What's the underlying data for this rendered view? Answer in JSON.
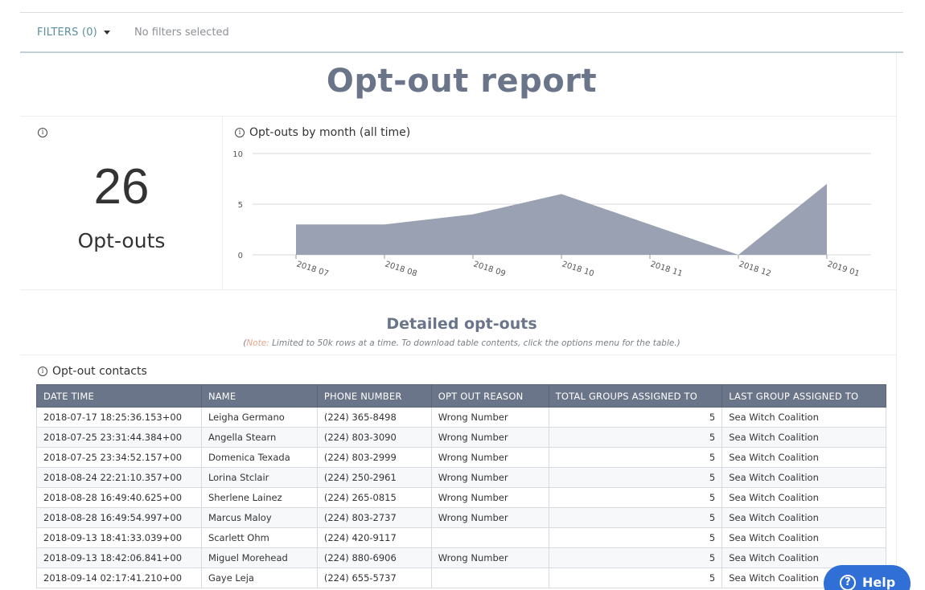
{
  "filters": {
    "label": "FILTERS (0)",
    "status": "No filters selected"
  },
  "report": {
    "title": "Opt-out report"
  },
  "kpi": {
    "info": "i",
    "value": "26",
    "label": "Opt-outs"
  },
  "chart": {
    "info": "i",
    "title": "Opt-outs by month (all time)"
  },
  "chart_data": {
    "type": "area",
    "title": "Opt-outs by month (all time)",
    "x": [
      "2018 07",
      "2018 08",
      "2018 09",
      "2018 10",
      "2018 11",
      "2018 12",
      "2019 01"
    ],
    "values": [
      3,
      3,
      4,
      6,
      3,
      0,
      7
    ],
    "ylim": [
      0,
      10
    ],
    "yticks": [
      0,
      5,
      10
    ],
    "grid": true,
    "color": "#9aa1b2"
  },
  "detail": {
    "title": "Detailed opt-outs",
    "note_open": "(",
    "note_tag": "Note:",
    "note_text": "  Limited to 50k rows at a time. To download table contents, click the options menu for the table.)"
  },
  "table": {
    "info": "i",
    "title": "Opt-out contacts",
    "columns": [
      "DATE TIME",
      "NAME",
      "PHONE NUMBER",
      "OPT OUT REASON",
      "TOTAL GROUPS ASSIGNED TO",
      "LAST GROUP ASSIGNED TO"
    ],
    "rows": [
      [
        "2018-07-17 18:25:36.153+00",
        "Leigha Germano",
        "(224) 365-8498",
        "Wrong Number",
        "5",
        "Sea Witch Coalition"
      ],
      [
        "2018-07-25 23:31:44.384+00",
        "Angella Stearn",
        "(224) 803-3090",
        "Wrong Number",
        "5",
        "Sea Witch Coalition"
      ],
      [
        "2018-07-25 23:34:52.157+00",
        "Domenica Texada",
        "(224) 803-2999",
        "Wrong Number",
        "5",
        "Sea Witch Coalition"
      ],
      [
        "2018-08-24 22:21:10.357+00",
        "Lorina Stclair",
        "(224) 250-2961",
        "Wrong Number",
        "5",
        "Sea Witch Coalition"
      ],
      [
        "2018-08-28 16:49:40.625+00",
        "Sherlene Lainez",
        "(224) 265-0815",
        "Wrong Number",
        "5",
        "Sea Witch Coalition"
      ],
      [
        "2018-08-28 16:49:54.997+00",
        "Marcus Maloy",
        "(224) 803-2737",
        "Wrong Number",
        "5",
        "Sea Witch Coalition"
      ],
      [
        "2018-09-13 18:41:33.039+00",
        "Scarlett Ohm",
        "(224) 420-9117",
        "",
        "5",
        "Sea Witch Coalition"
      ],
      [
        "2018-09-13 18:42:06.841+00",
        "Miguel Morehead",
        "(224) 880-6906",
        "Wrong Number",
        "5",
        "Sea Witch Coalition"
      ],
      [
        "2018-09-14 02:17:41.210+00",
        "Gaye Leja",
        "(224) 655-5737",
        "",
        "5",
        "Sea Witch Coalition"
      ]
    ]
  },
  "help": {
    "icon": "?",
    "label": "Help"
  }
}
